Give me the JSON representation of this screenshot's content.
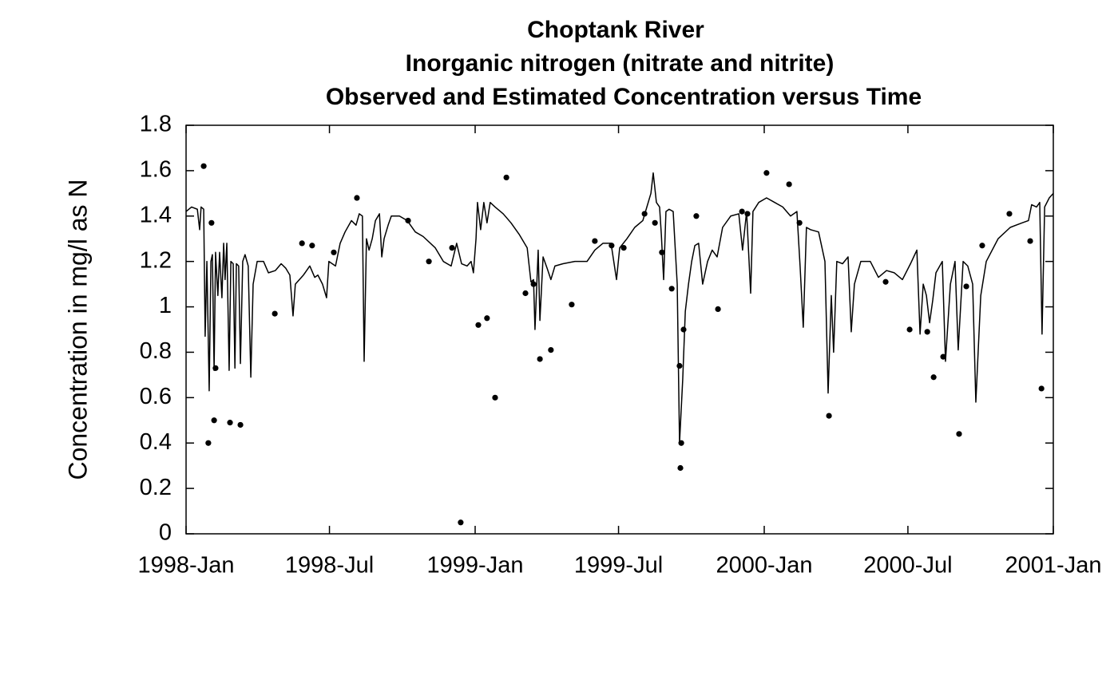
{
  "chart_data": {
    "type": "line",
    "title": [
      "Choptank River",
      "Inorganic nitrogen (nitrate and nitrite)",
      "Observed and Estimated Concentration versus Time"
    ],
    "ylabel": "Concentration in mg/l as N",
    "xlim": [
      1998,
      2001
    ],
    "ylim": [
      0,
      1.8
    ],
    "xticks": [
      {
        "value": 1998,
        "label": "1998-Jan"
      },
      {
        "value": 1998.496,
        "label": "1998-Jul"
      },
      {
        "value": 1999,
        "label": "1999-Jan"
      },
      {
        "value": 1999.496,
        "label": "1999-Jul"
      },
      {
        "value": 2000,
        "label": "2000-Jan"
      },
      {
        "value": 2000.497,
        "label": "2000-Jul"
      },
      {
        "value": 2001,
        "label": "2001-Jan"
      }
    ],
    "yticks": [
      0,
      0.2,
      0.4,
      0.6,
      0.8,
      1,
      1.2,
      1.4,
      1.6,
      1.8
    ],
    "grid": false,
    "series": [
      {
        "type": "line",
        "color": "#000000",
        "x": [
          1998.0,
          1998.019,
          1998.039,
          1998.047,
          1998.052,
          1998.061,
          1998.066,
          1998.072,
          1998.08,
          1998.086,
          1998.091,
          1998.097,
          1998.102,
          1998.11,
          1998.116,
          1998.124,
          1998.13,
          1998.135,
          1998.141,
          1998.149,
          1998.155,
          1998.163,
          1998.169,
          1998.174,
          1998.182,
          1998.188,
          1998.196,
          1998.204,
          1998.215,
          1998.224,
          1998.232,
          1998.246,
          1998.268,
          1998.285,
          1998.309,
          1998.329,
          1998.345,
          1998.359,
          1998.37,
          1998.378,
          1998.406,
          1998.428,
          1998.445,
          1998.456,
          1998.472,
          1998.486,
          1998.494,
          1998.517,
          1998.533,
          1998.55,
          1998.572,
          1998.588,
          1998.599,
          1998.61,
          1998.616,
          1998.624,
          1998.633,
          1998.644,
          1998.655,
          1998.669,
          1998.677,
          1998.685,
          1998.699,
          1998.71,
          1998.738,
          1998.765,
          1998.793,
          1998.82,
          1998.862,
          1998.89,
          1998.917,
          1998.936,
          1998.953,
          1998.972,
          1998.986,
          1998.994,
          1999.003,
          1999.008,
          1999.019,
          1999.03,
          1999.041,
          1999.052,
          1999.069,
          1999.097,
          1999.124,
          1999.152,
          1999.18,
          1999.193,
          1999.202,
          1999.207,
          1999.218,
          1999.224,
          1999.235,
          1999.249,
          1999.262,
          1999.276,
          1999.304,
          1999.345,
          1999.387,
          1999.414,
          1999.442,
          1999.47,
          1999.489,
          1999.5,
          1999.525,
          1999.552,
          1999.58,
          1999.594,
          1999.608,
          1999.616,
          1999.627,
          1999.638,
          1999.644,
          1999.652,
          1999.66,
          1999.671,
          1999.685,
          1999.699,
          1999.707,
          1999.718,
          1999.727,
          1999.738,
          1999.749,
          1999.76,
          1999.773,
          1999.787,
          1999.804,
          1999.82,
          1999.837,
          1999.856,
          1999.884,
          1999.912,
          1999.925,
          1999.939,
          1999.953,
          1999.961,
          1999.981,
          2000.008,
          2000.036,
          2000.064,
          2000.091,
          2000.113,
          2000.124,
          2000.135,
          2000.146,
          2000.16,
          2000.188,
          2000.21,
          2000.221,
          2000.232,
          2000.24,
          2000.251,
          2000.271,
          2000.29,
          2000.301,
          2000.312,
          2000.334,
          2000.367,
          2000.395,
          2000.423,
          2000.45,
          2000.478,
          2000.506,
          2000.528,
          2000.539,
          2000.55,
          2000.561,
          2000.572,
          2000.583,
          2000.594,
          2000.616,
          2000.627,
          2000.644,
          2000.66,
          2000.671,
          2000.688,
          2000.704,
          2000.721,
          2000.732,
          2000.749,
          2000.768,
          2000.809,
          2000.851,
          2000.892,
          2000.914,
          2000.925,
          2000.942,
          2000.953,
          2000.961,
          2000.97,
          2000.986,
          2001.0
        ],
        "values": [
          1.42,
          1.44,
          1.43,
          1.34,
          1.44,
          1.43,
          0.87,
          1.2,
          0.63,
          1.2,
          1.23,
          0.72,
          1.24,
          1.05,
          1.24,
          1.04,
          1.28,
          1.12,
          1.28,
          0.72,
          1.2,
          1.19,
          0.73,
          1.19,
          1.18,
          0.75,
          1.2,
          1.23,
          1.18,
          0.69,
          1.1,
          1.2,
          1.2,
          1.15,
          1.16,
          1.19,
          1.17,
          1.14,
          0.96,
          1.1,
          1.14,
          1.18,
          1.13,
          1.14,
          1.1,
          1.04,
          1.2,
          1.18,
          1.28,
          1.33,
          1.38,
          1.36,
          1.41,
          1.4,
          0.76,
          1.3,
          1.25,
          1.3,
          1.38,
          1.41,
          1.22,
          1.3,
          1.36,
          1.4,
          1.4,
          1.38,
          1.33,
          1.31,
          1.26,
          1.2,
          1.18,
          1.28,
          1.19,
          1.18,
          1.2,
          1.15,
          1.3,
          1.46,
          1.34,
          1.46,
          1.37,
          1.46,
          1.44,
          1.41,
          1.37,
          1.32,
          1.26,
          1.11,
          1.12,
          0.9,
          1.25,
          0.94,
          1.22,
          1.17,
          1.12,
          1.18,
          1.19,
          1.2,
          1.2,
          1.25,
          1.28,
          1.28,
          1.12,
          1.26,
          1.3,
          1.35,
          1.38,
          1.44,
          1.5,
          1.59,
          1.46,
          1.44,
          1.32,
          1.12,
          1.42,
          1.43,
          1.42,
          1.1,
          0.4,
          0.68,
          0.98,
          1.1,
          1.2,
          1.27,
          1.28,
          1.1,
          1.2,
          1.25,
          1.22,
          1.35,
          1.4,
          1.41,
          1.25,
          1.42,
          1.06,
          1.42,
          1.46,
          1.48,
          1.46,
          1.44,
          1.4,
          1.42,
          1.18,
          0.91,
          1.35,
          1.34,
          1.33,
          1.2,
          0.62,
          1.05,
          0.8,
          1.2,
          1.19,
          1.22,
          0.89,
          1.1,
          1.2,
          1.2,
          1.13,
          1.16,
          1.15,
          1.12,
          1.19,
          1.25,
          0.88,
          1.1,
          1.05,
          0.93,
          1.03,
          1.15,
          1.2,
          0.76,
          1.1,
          1.2,
          0.81,
          1.2,
          1.18,
          1.1,
          0.58,
          1.05,
          1.2,
          1.3,
          1.35,
          1.37,
          1.38,
          1.45,
          1.44,
          1.46,
          0.88,
          1.44,
          1.48,
          1.5
        ]
      },
      {
        "type": "scatter",
        "color": "#000000",
        "x": [
          1998.061,
          1998.077,
          1998.088,
          1998.097,
          1998.102,
          1998.152,
          1998.188,
          1998.307,
          1998.401,
          1998.436,
          1998.511,
          1998.591,
          1998.768,
          1998.84,
          1998.92,
          1998.95,
          1999.011,
          1999.041,
          1999.069,
          1999.108,
          1999.174,
          1999.202,
          1999.224,
          1999.262,
          1999.334,
          1999.414,
          1999.472,
          1999.514,
          1999.586,
          1999.622,
          1999.646,
          1999.68,
          1999.707,
          1999.71,
          1999.713,
          1999.721,
          1999.765,
          1999.84,
          1999.923,
          1999.942,
          2000.008,
          2000.086,
          2000.122,
          2000.224,
          2000.42,
          2000.503,
          2000.564,
          2000.586,
          2000.619,
          2000.674,
          2000.699,
          2000.754,
          2000.848,
          2000.92,
          2000.959
        ],
        "values": [
          1.62,
          0.4,
          1.37,
          0.5,
          0.73,
          0.49,
          0.48,
          0.97,
          1.28,
          1.27,
          1.24,
          1.48,
          1.38,
          1.2,
          1.26,
          0.05,
          0.92,
          0.95,
          0.6,
          1.57,
          1.06,
          1.1,
          0.77,
          0.81,
          1.01,
          1.29,
          1.27,
          1.26,
          1.41,
          1.37,
          1.24,
          1.08,
          0.74,
          0.29,
          0.4,
          0.9,
          1.4,
          0.99,
          1.42,
          1.41,
          1.59,
          1.54,
          1.37,
          0.52,
          1.11,
          0.9,
          0.89,
          0.69,
          0.78,
          0.44,
          1.09,
          1.27,
          1.41,
          1.29,
          0.64
        ]
      }
    ]
  }
}
